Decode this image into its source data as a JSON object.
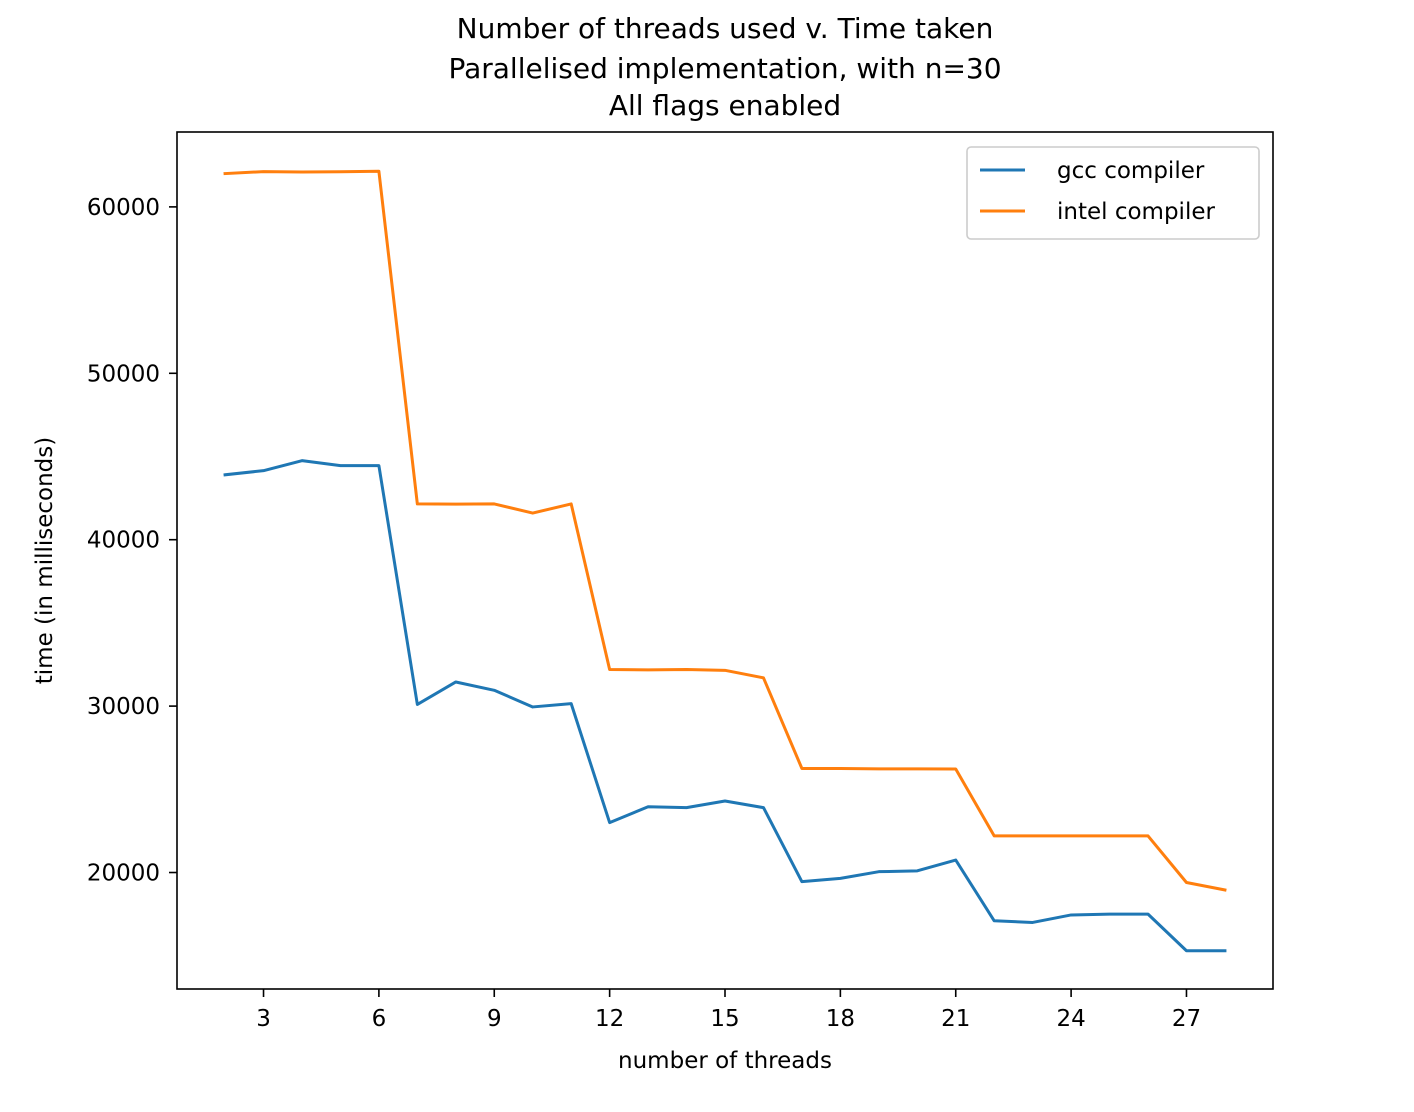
{
  "chart_data": {
    "type": "line",
    "title_lines": [
      "Number of threads used v. Time taken",
      "Parallelised implementation, with n=30",
      "All flags enabled"
    ],
    "xlabel": "number of threads",
    "ylabel": "time (in milliseconds)",
    "xlim": [
      0.75,
      29.25
    ],
    "ylim": [
      13000,
      64500
    ],
    "xticks": [
      3,
      6,
      9,
      12,
      15,
      18,
      21,
      24,
      27
    ],
    "yticks": [
      20000,
      30000,
      40000,
      50000,
      60000
    ],
    "legend_position": "upper-right",
    "x": [
      2,
      3,
      4,
      5,
      6,
      7,
      8,
      9,
      10,
      11,
      12,
      13,
      14,
      15,
      16,
      17,
      18,
      19,
      20,
      21,
      22,
      23,
      24,
      25,
      26,
      27,
      28
    ],
    "series": [
      {
        "name": "gcc compiler",
        "color": "#1f77b4",
        "values": [
          43900,
          44150,
          44750,
          44450,
          44450,
          30100,
          31450,
          30950,
          29950,
          30150,
          23000,
          23950,
          23900,
          24300,
          23900,
          19450,
          19650,
          20050,
          20100,
          20750,
          17100,
          17000,
          17450,
          17500,
          17500,
          15300,
          15300
        ]
      },
      {
        "name": "intel compiler",
        "color": "#ff7f0e",
        "values": [
          62000,
          62120,
          62100,
          62110,
          62140,
          42150,
          42140,
          42150,
          41600,
          42150,
          32200,
          32180,
          32200,
          32150,
          31700,
          26250,
          26250,
          26230,
          26230,
          26220,
          22200,
          22200,
          22200,
          22200,
          22200,
          19400,
          18950
        ]
      }
    ]
  }
}
